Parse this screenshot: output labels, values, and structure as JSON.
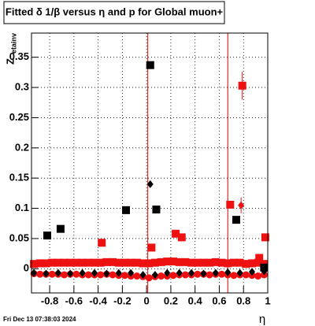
{
  "chart_data": {
    "type": "scatter",
    "title": "Fitted δ 1/β versus η and p for Global muon+",
    "x_label": "η",
    "y_label": "Z",
    "y_label_sub": "etainv",
    "footer": "Fri Dec 13 07:38:03 2024",
    "xlim": [
      -0.95,
      1.0
    ],
    "ylim": [
      -0.04,
      0.39
    ],
    "xticks": [
      -0.8,
      -0.6,
      -0.4,
      -0.2,
      0,
      0.2,
      0.4,
      0.6,
      0.8,
      1
    ],
    "yticks": [
      0,
      0.05,
      0.1,
      0.15,
      0.2,
      0.25,
      0.3,
      0.35
    ],
    "grid": true,
    "reference_lines": {
      "color": "#e00000",
      "x": [
        0.01,
        0.67
      ]
    },
    "series": [
      {
        "marker": "circle",
        "color": "#ee1111",
        "x": [
          -0.93,
          -0.88,
          -0.83,
          -0.78,
          -0.73,
          -0.68,
          -0.63,
          -0.58,
          -0.53,
          -0.48,
          -0.43,
          -0.38,
          -0.33,
          -0.28,
          -0.23,
          -0.18,
          -0.13,
          -0.08,
          -0.03,
          0.02,
          0.07,
          0.12,
          0.17,
          0.22,
          0.27,
          0.32,
          0.37,
          0.42,
          0.47,
          0.52,
          0.57,
          0.62,
          0.67,
          0.72,
          0.77,
          0.82,
          0.87,
          0.92,
          0.97
        ],
        "values": [
          -0.008,
          -0.009,
          -0.009,
          -0.009,
          -0.009,
          -0.01,
          -0.009,
          -0.009,
          -0.01,
          -0.01,
          -0.01,
          -0.01,
          -0.009,
          -0.01,
          -0.011,
          -0.011,
          -0.012,
          -0.012,
          -0.013,
          -0.015,
          -0.013,
          -0.012,
          -0.012,
          -0.011,
          -0.01,
          -0.01,
          -0.01,
          -0.009,
          -0.009,
          -0.01,
          -0.009,
          -0.009,
          -0.01,
          -0.011,
          -0.01,
          -0.01,
          -0.011,
          -0.012,
          -0.01
        ]
      },
      {
        "marker": "diamond",
        "color": "#000000",
        "x": [
          -0.93,
          -0.83,
          -0.73,
          -0.63,
          -0.53,
          -0.43,
          -0.33,
          -0.23,
          -0.13,
          -0.03,
          0.07,
          0.17,
          0.27,
          0.37,
          0.47,
          0.57,
          0.67,
          0.77,
          0.87,
          0.97
        ],
        "values": [
          -0.007,
          -0.008,
          -0.007,
          -0.008,
          -0.007,
          -0.007,
          -0.008,
          -0.007,
          -0.007,
          -0.01,
          -0.01,
          -0.007,
          -0.007,
          -0.007,
          -0.008,
          -0.007,
          -0.006,
          -0.007,
          -0.005,
          -0.004
        ]
      },
      {
        "marker": "square",
        "color": "#ee1111",
        "x": [
          -0.93,
          -0.88,
          -0.83,
          -0.78,
          -0.73,
          -0.68,
          -0.63,
          -0.58,
          -0.53,
          -0.48,
          -0.43,
          -0.38,
          -0.33,
          -0.28,
          -0.23,
          -0.18,
          -0.13,
          -0.08,
          -0.03,
          0.02,
          0.07,
          0.12,
          0.17,
          0.22,
          0.27,
          0.32,
          0.37,
          0.42,
          0.47,
          0.52,
          0.57,
          0.62,
          0.67,
          0.72,
          0.77,
          0.82,
          0.87,
          0.92,
          0.97
        ],
        "values": [
          0.008,
          0.009,
          0.009,
          0.01,
          0.01,
          0.01,
          0.01,
          0.01,
          0.01,
          0.01,
          0.01,
          0.01,
          0.011,
          0.011,
          0.01,
          0.01,
          0.01,
          0.01,
          0.009,
          0.009,
          0.01,
          0.011,
          0.012,
          0.012,
          0.011,
          0.011,
          0.01,
          0.01,
          0.01,
          0.01,
          0.011,
          0.01,
          0.009,
          0.01,
          0.01,
          0.008,
          0.009,
          0.01,
          0.008
        ]
      },
      {
        "marker": "square",
        "color": "#000000",
        "x": [
          -0.82,
          -0.71,
          -0.17,
          0.03,
          0.08,
          0.74,
          0.97
        ],
        "values": [
          0.055,
          0.066,
          0.097,
          0.337,
          0.098,
          0.081,
          0.002
        ]
      },
      {
        "marker": "square",
        "color": "#ee1111",
        "x": [
          -0.37,
          0.04,
          0.24,
          0.29,
          0.69,
          0.93,
          0.98
        ],
        "values": [
          0.043,
          0.035,
          0.058,
          0.052,
          0.106,
          0.018,
          0.052
        ]
      },
      {
        "marker": "square",
        "color": "#ee1111",
        "x": [
          0.79
        ],
        "values": [
          0.303
        ],
        "errors": [
          0.023
        ]
      },
      {
        "marker": "diamond",
        "color": "#000000",
        "x": [
          0.03
        ],
        "values": [
          0.14
        ]
      },
      {
        "marker": "diamond",
        "color": "#ee1111",
        "x": [
          0.78
        ],
        "values": [
          0.105
        ],
        "errors": [
          0.013
        ]
      }
    ]
  }
}
